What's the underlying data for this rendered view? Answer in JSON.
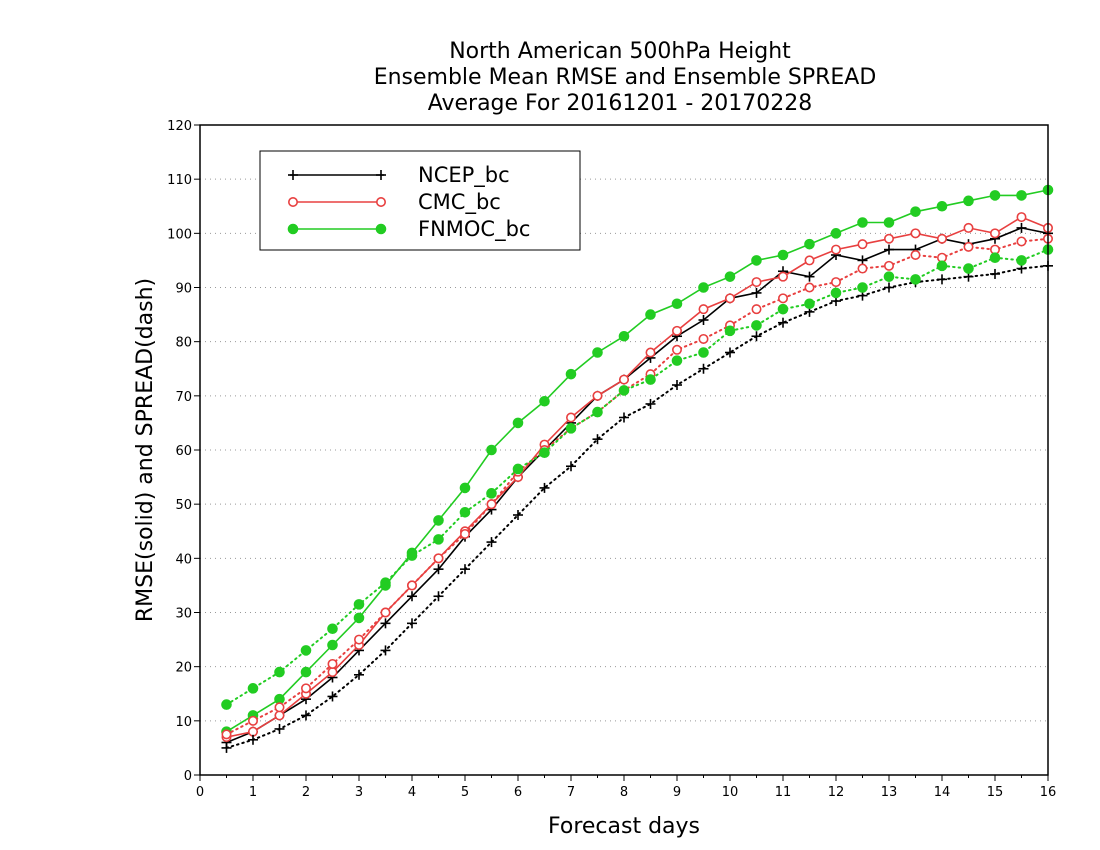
{
  "chart_data": {
    "type": "line",
    "title": [
      "North American 500hPa Height",
      "Ensemble Mean RMSE and Ensemble SPREAD",
      "Average For 20161201 - 20170228"
    ],
    "xlabel": "Forecast days",
    "ylabel": "RMSE(solid) and SPREAD(dash)",
    "xlim": [
      0,
      16
    ],
    "ylim": [
      0,
      120
    ],
    "xticks": [
      0,
      1,
      2,
      3,
      4,
      5,
      6,
      7,
      8,
      9,
      10,
      11,
      12,
      13,
      14,
      15,
      16
    ],
    "yticks": [
      0,
      10,
      20,
      30,
      40,
      50,
      60,
      70,
      80,
      90,
      100,
      110,
      120
    ],
    "grid": "horizontal dotted",
    "legend_position": "top-left",
    "x": [
      0.5,
      1,
      1.5,
      2,
      2.5,
      3,
      3.5,
      4,
      4.5,
      5,
      5.5,
      6,
      6.5,
      7,
      7.5,
      8,
      8.5,
      9,
      9.5,
      10,
      10.5,
      11,
      11.5,
      12,
      12.5,
      13,
      13.5,
      14,
      14.5,
      15,
      15.5,
      16
    ],
    "series": [
      {
        "name": "NCEP_bc",
        "kind": "rmse",
        "style": "solid",
        "marker": "plus",
        "color": "#000000",
        "values": [
          6,
          8,
          11,
          14,
          18,
          23,
          28,
          33,
          38,
          44,
          49,
          55,
          60,
          65,
          70,
          73,
          77,
          81,
          84,
          88,
          89,
          93,
          92,
          96,
          95,
          97,
          97,
          99,
          98,
          99,
          101,
          100
        ]
      },
      {
        "name": "CMC_bc",
        "kind": "rmse",
        "style": "solid",
        "marker": "open-circle",
        "color": "#e84040",
        "values": [
          7,
          8,
          11,
          15,
          19,
          24,
          30,
          35,
          40,
          45,
          50,
          55,
          61,
          66,
          70,
          73,
          78,
          82,
          86,
          88,
          91,
          92,
          95,
          97,
          98,
          99,
          100,
          99,
          101,
          100,
          103,
          101
        ]
      },
      {
        "name": "FNMOC_bc",
        "kind": "rmse",
        "style": "solid",
        "marker": "filled-circle",
        "color": "#22cc22",
        "values": [
          8,
          11,
          14,
          19,
          24,
          29,
          35,
          41,
          47,
          53,
          60,
          65,
          69,
          74,
          78,
          81,
          85,
          87,
          90,
          92,
          95,
          96,
          98,
          100,
          102,
          102,
          104,
          105,
          106,
          107,
          107,
          108
        ]
      },
      {
        "name": "NCEP_bc",
        "kind": "spread",
        "style": "dotted",
        "marker": "plus",
        "color": "#000000",
        "values": [
          5,
          6.5,
          8.5,
          11,
          14.5,
          18.5,
          23,
          28,
          33,
          38,
          43,
          48,
          53,
          57,
          62,
          66,
          68.5,
          72,
          75,
          78,
          81,
          83.5,
          85.5,
          87.5,
          88.5,
          90,
          91,
          91.5,
          92,
          92.5,
          93.5,
          94
        ]
      },
      {
        "name": "CMC_bc",
        "kind": "spread",
        "style": "dotted",
        "marker": "open-circle",
        "color": "#e84040",
        "values": [
          7.5,
          10,
          12.5,
          16,
          20.5,
          25,
          30,
          35,
          40,
          44.5,
          50,
          56,
          60,
          64,
          67,
          71,
          74,
          78.5,
          80.5,
          83,
          86,
          88,
          90,
          91,
          93.5,
          94,
          96,
          95.5,
          97.5,
          97,
          98.5,
          99
        ]
      },
      {
        "name": "FNMOC_bc",
        "kind": "spread",
        "style": "dotted",
        "marker": "filled-circle",
        "color": "#22cc22",
        "values": [
          13,
          16,
          19,
          23,
          27,
          31.5,
          35.5,
          40.5,
          43.5,
          48.5,
          52,
          56.5,
          59.5,
          64,
          67,
          71,
          73,
          76.5,
          78,
          82,
          83,
          86,
          87,
          89,
          90,
          92,
          91.5,
          94,
          93.5,
          95.5,
          95,
          97
        ]
      }
    ],
    "legend": [
      {
        "label": "NCEP_bc",
        "marker": "plus",
        "color": "#000000"
      },
      {
        "label": "CMC_bc",
        "marker": "open-circle",
        "color": "#e84040"
      },
      {
        "label": "FNMOC_bc",
        "marker": "filled-circle",
        "color": "#22cc22"
      }
    ]
  }
}
